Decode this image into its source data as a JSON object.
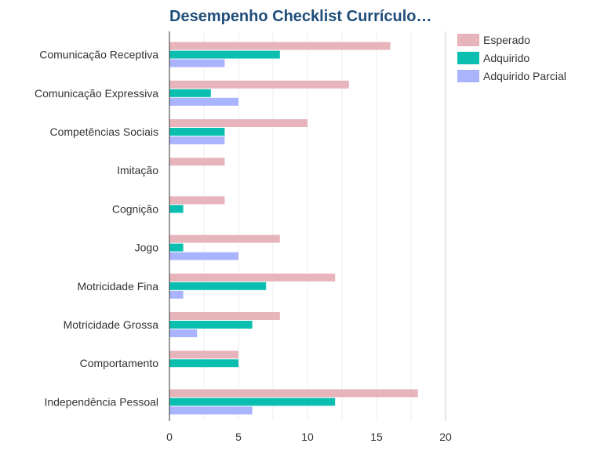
{
  "chart_data": {
    "type": "bar",
    "orientation": "horizontal",
    "title": "Desempenho Checklist Currículo…",
    "categories": [
      "Comunicação Receptiva",
      "Comunicação Expressiva",
      "Competências Sociais",
      "Imitação",
      "Cognição",
      "Jogo",
      "Motricidade Fina",
      "Motricidade Grossa",
      "Comportamento",
      "Independência Pessoal"
    ],
    "series": [
      {
        "name": "Esperado",
        "color": "#e8b4bc",
        "values": [
          16,
          13,
          10,
          4,
          4,
          8,
          12,
          8,
          5,
          18
        ]
      },
      {
        "name": "Adquirido",
        "color": "#0abfb0",
        "values": [
          8,
          3,
          4,
          0,
          1,
          1,
          7,
          6,
          5,
          12
        ]
      },
      {
        "name": "Adquirido Parcial",
        "color": "#a9b4fc",
        "values": [
          4,
          5,
          4,
          0,
          0,
          5,
          1,
          2,
          0,
          6
        ]
      }
    ],
    "xlim": [
      0,
      20
    ],
    "xticks": [
      "0",
      "5",
      "10",
      "15",
      "20"
    ],
    "grid": "vertical",
    "legend_position": "top-right"
  }
}
